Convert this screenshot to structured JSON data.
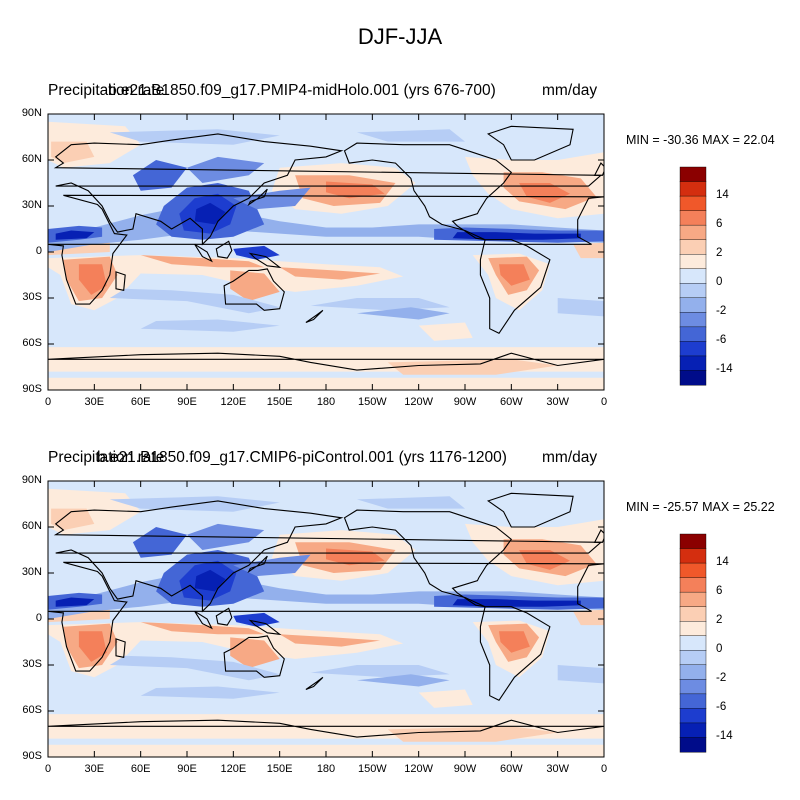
{
  "figure": {
    "title": "DJF-JJA"
  },
  "panels": [
    {
      "left_label": "Precipitation rate",
      "center_label": "b.e21.B1850.f09_g17.PMIP4-midHolo.001 (yrs 676-700)",
      "right_label": "mm/day",
      "stats": "MIN = -30.36 MAX =  22.04"
    },
    {
      "left_label": "Precipitation rate",
      "center_label": "b.e21.B1850.f09_g17.CMIP6-piControl.001 (yrs 1176-1200)",
      "right_label": "mm/day",
      "stats": "MIN = -25.57 MAX =  25.22"
    }
  ],
  "axes": {
    "lat_ticks": [
      "90N",
      "60N",
      "30N",
      "0",
      "30S",
      "60S",
      "90S"
    ],
    "lon_ticks": [
      "0",
      "30E",
      "60E",
      "90E",
      "120E",
      "150E",
      "180",
      "150W",
      "120W",
      "90W",
      "60W",
      "30W",
      "0"
    ]
  },
  "colorbar": {
    "labels": [
      "14",
      "6",
      "2",
      "0",
      "-2",
      "-6",
      "-14"
    ],
    "colors": [
      "#8b0000",
      "#d42e0f",
      "#f0582a",
      "#f4805a",
      "#f7a985",
      "#fbcfb4",
      "#fdebdc",
      "#d7e7fb",
      "#b6cdf5",
      "#93b0ec",
      "#6d8ce2",
      "#4466d6",
      "#1d3dcf",
      "#0620b4",
      "#000c8a"
    ]
  },
  "map_legend_colors": {
    "neutral": "#d7e7fb",
    "coast": "#000000"
  }
}
